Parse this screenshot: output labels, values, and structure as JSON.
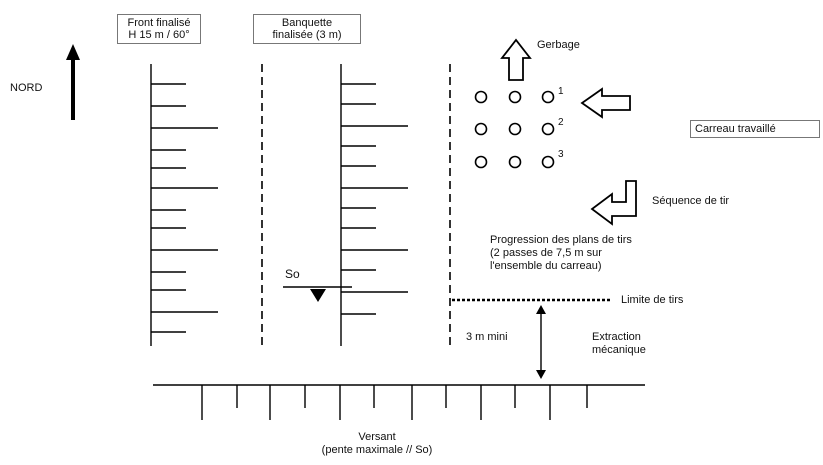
{
  "header": {
    "front_line1": "Front finalisé",
    "front_line2": "H 15 m / 60°",
    "banquette_line1": "Banquette",
    "banquette_line2": "finalisée (3 m)"
  },
  "north_label": "NORD",
  "so_label": "So",
  "gerbage_label": "Gerbage",
  "carreau_label": "Carreau travaillé",
  "sequence_label": "Séquence de tir",
  "sequence_numbers": [
    "1",
    "2",
    "3"
  ],
  "progression": {
    "line1": "Progression des plans de tirs",
    "line2": "(2 passes de 7,5 m sur",
    "line3": "l'ensemble du carreau)"
  },
  "limite_label": "Limite de tirs",
  "distance_label": "3 m mini",
  "extraction": {
    "line1": "Extraction",
    "line2": "mécanique"
  },
  "versant": {
    "line1": "Versant",
    "line2": "(pente maximale // So)"
  }
}
